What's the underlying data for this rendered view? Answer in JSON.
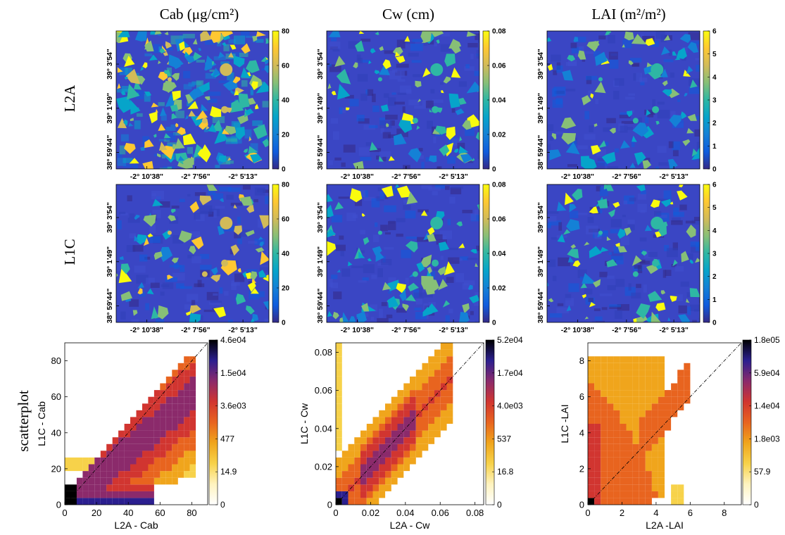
{
  "figure": {
    "column_titles": [
      "Cab (μg/cm²)",
      "Cw (cm)",
      "LAI (m²/m²)"
    ],
    "row_labels": [
      "L2A",
      "L1C",
      "scatterplot"
    ]
  },
  "colors": {
    "parula": [
      "#352a87",
      "#0f5cdd",
      "#1481d6",
      "#06a4ca",
      "#2eb7a4",
      "#87bf77",
      "#d1bb59",
      "#fec832",
      "#f9fb0e"
    ],
    "density": [
      "#ffffff",
      "#fff3bf",
      "#f7d24a",
      "#f0a51c",
      "#e8641f",
      "#d13530",
      "#8b2a6b",
      "#2b1f8f",
      "#000000"
    ]
  },
  "maps": {
    "x_ticks": [
      "-2° 10'38\"",
      "-2° 7'56\"",
      "-2° 5'13\""
    ],
    "y_ticks": [
      "39° 3'54\"",
      "39° 1'49\"",
      "38° 59'44\""
    ],
    "colorbars": [
      {
        "ticks": [
          "80",
          "60",
          "40",
          "20",
          "0"
        ]
      },
      {
        "ticks": [
          "0.08",
          "0.06",
          "0.04",
          "0.02",
          "0"
        ]
      },
      {
        "ticks": [
          "6",
          "5",
          "4",
          "3",
          "2",
          "1",
          "0"
        ]
      }
    ]
  },
  "chart_data": [
    {
      "type": "heatmap",
      "xlabel": "L2A - Cab",
      "ylabel": "L1C - Cab",
      "xlim": [
        0,
        90
      ],
      "ylim": [
        0,
        90
      ],
      "x_ticks": [
        0,
        20,
        40,
        60,
        80
      ],
      "y_ticks": [
        0,
        20,
        40,
        60,
        80
      ],
      "x_tick_labels": [
        "0",
        "20",
        "40",
        "60",
        "80"
      ],
      "y_tick_labels": [
        "0",
        "20",
        "40",
        "60",
        "80"
      ],
      "colorbar_ticks": [
        "4.6e04",
        "1.5e04",
        "3.6e03",
        "477",
        "14.9",
        "0"
      ],
      "one_to_one_line": true,
      "density_peak": [
        2,
        2
      ],
      "density_band": [
        {
          "x": [
            5,
            55
          ],
          "y": [
            0,
            10
          ]
        }
      ]
    },
    {
      "type": "heatmap",
      "xlabel": "L2A - Cw",
      "ylabel": "L1C - Cw",
      "xlim": [
        0,
        0.085
      ],
      "ylim": [
        0,
        0.085
      ],
      "x_ticks": [
        0,
        0.02,
        0.04,
        0.06,
        0.08
      ],
      "y_ticks": [
        0,
        0.02,
        0.04,
        0.06,
        0.08
      ],
      "x_tick_labels": [
        "0",
        "0.02",
        "0.04",
        "0.06",
        "0.08"
      ],
      "y_tick_labels": [
        "0",
        "0.02",
        "0.04",
        "0.06",
        "0.08"
      ],
      "colorbar_ticks": [
        "5.2e04",
        "1.7e04",
        "4.0e03",
        "537",
        "16.8",
        "0"
      ],
      "one_to_one_line": true,
      "density_peak": [
        0.002,
        0.002
      ],
      "density_band": [
        {
          "x": [
            0.02,
            0.045
          ],
          "y": [
            0.02,
            0.045
          ]
        }
      ]
    },
    {
      "type": "heatmap",
      "xlabel": "L2A -LAI",
      "ylabel": "L1C -LAI",
      "xlim": [
        0,
        9
      ],
      "ylim": [
        0,
        9
      ],
      "x_ticks": [
        0,
        2,
        4,
        6,
        8
      ],
      "y_ticks": [
        0,
        2,
        4,
        6,
        8
      ],
      "x_tick_labels": [
        "0",
        "2",
        "4",
        "6",
        "8"
      ],
      "y_tick_labels": [
        "0",
        "2",
        "4",
        "6",
        "8"
      ],
      "colorbar_ticks": [
        "1.8e05",
        "5.9e04",
        "1.4e04",
        "1.8e03",
        "57.9",
        "0"
      ],
      "one_to_one_line": true,
      "density_peak": [
        0.2,
        0.2
      ],
      "density_band": [
        {
          "x": [
            0,
            4.5
          ],
          "y": [
            0,
            8
          ]
        }
      ]
    }
  ]
}
